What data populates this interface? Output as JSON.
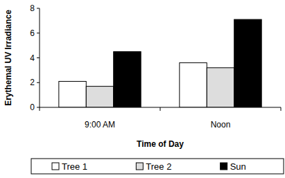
{
  "chart_data": {
    "type": "bar",
    "x_label": "Time of Day",
    "y_label": "Erythemal UV Irradiance",
    "categories": [
      "9:00 AM",
      "Noon"
    ],
    "series": [
      {
        "name": "Tree 1",
        "color": "#ffffff",
        "values": [
          2.1,
          3.6
        ]
      },
      {
        "name": "Tree 2",
        "color": "#dddddd",
        "values": [
          1.7,
          3.2
        ]
      },
      {
        "name": "Sun",
        "color": "#000000",
        "values": [
          4.5,
          7.1
        ]
      }
    ],
    "ylim": [
      0,
      8
    ],
    "yticks": [
      0,
      2,
      4,
      6,
      8
    ],
    "grid": false,
    "legend": "bottom"
  }
}
